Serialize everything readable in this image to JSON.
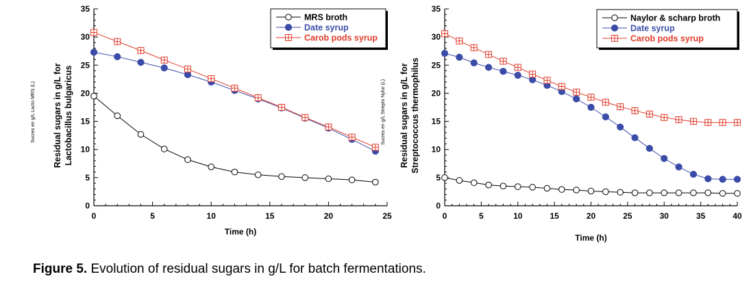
{
  "colors": {
    "black": "#000000",
    "blue": "#3b4ba8",
    "red": "#e03a2a"
  },
  "caption": {
    "label": "Figure 5.",
    "text": " Evolution of residual sugars in g/L for batch fermentations."
  },
  "chart_data": [
    {
      "type": "line",
      "xlabel": "Time (h)",
      "ylabel_line1": "Residual sugars in g/L for",
      "ylabel_line2": "Lactobacillus bulgaricus",
      "side_label": "Sucres en g/L Lacto MRS (L)",
      "xlim": [
        0,
        25
      ],
      "ylim": [
        0,
        35
      ],
      "xticks": [
        0,
        5,
        10,
        15,
        20,
        25
      ],
      "yticks": [
        0,
        5,
        10,
        15,
        20,
        25,
        30,
        35
      ],
      "legend_position": "top-right",
      "x": [
        0,
        2,
        4,
        6,
        8,
        10,
        12,
        14,
        16,
        18,
        20,
        22,
        24
      ],
      "series": [
        {
          "name": "MRS broth",
          "marker": "open-circle",
          "color": "#000000",
          "values": [
            19.5,
            16.0,
            12.7,
            10.1,
            8.2,
            6.9,
            6.0,
            5.5,
            5.2,
            5.0,
            4.8,
            4.6,
            4.2
          ]
        },
        {
          "name": "Date syrup",
          "marker": "filled-circle",
          "color": "#3b4ba8",
          "values": [
            27.3,
            26.5,
            25.5,
            24.5,
            23.3,
            22.0,
            20.5,
            19.0,
            17.4,
            15.6,
            13.8,
            11.8,
            9.7
          ]
        },
        {
          "name": "Carob pods syrup",
          "marker": "crossed-square",
          "color": "#e03a2a",
          "values": [
            30.8,
            29.2,
            27.6,
            25.9,
            24.3,
            22.6,
            20.9,
            19.2,
            17.5,
            15.7,
            14.0,
            12.2,
            10.4
          ]
        }
      ]
    },
    {
      "type": "line",
      "xlabel": "Time (h)",
      "ylabel_line1": "Residual sugars in g/L for",
      "ylabel_line2": "Streptococcus thermophilus",
      "side_label": "Sucres en g/L Strepto Nylor  (L)",
      "xlim": [
        0,
        40
      ],
      "ylim": [
        0,
        35
      ],
      "xticks": [
        0,
        5,
        10,
        15,
        20,
        25,
        30,
        35,
        40
      ],
      "yticks": [
        0,
        5,
        10,
        15,
        20,
        25,
        30,
        35
      ],
      "legend_position": "top-right",
      "x": [
        0,
        2,
        4,
        6,
        8,
        10,
        12,
        14,
        16,
        18,
        20,
        22,
        24,
        26,
        28,
        30,
        32,
        34,
        36,
        38,
        40
      ],
      "series": [
        {
          "name": "Naylor & scharp broth",
          "marker": "open-circle",
          "color": "#000000",
          "values": [
            5.0,
            4.5,
            4.1,
            3.7,
            3.5,
            3.4,
            3.3,
            3.1,
            2.9,
            2.8,
            2.6,
            2.5,
            2.4,
            2.3,
            2.3,
            2.3,
            2.3,
            2.3,
            2.3,
            2.2,
            2.2
          ]
        },
        {
          "name": "Date syrup",
          "marker": "filled-circle",
          "color": "#3b4ba8",
          "values": [
            27.1,
            26.4,
            25.4,
            24.6,
            23.9,
            23.2,
            22.4,
            21.4,
            20.3,
            19.0,
            17.5,
            15.8,
            14.0,
            12.1,
            10.2,
            8.4,
            6.9,
            5.6,
            4.8,
            4.7,
            4.7
          ]
        },
        {
          "name": "Carob pods syrup",
          "marker": "crossed-square",
          "color": "#e03a2a",
          "values": [
            30.6,
            29.3,
            28.1,
            26.9,
            25.7,
            24.6,
            23.4,
            22.3,
            21.2,
            20.2,
            19.3,
            18.4,
            17.6,
            16.9,
            16.3,
            15.7,
            15.3,
            15.0,
            14.8,
            14.8,
            14.8
          ]
        }
      ]
    }
  ]
}
